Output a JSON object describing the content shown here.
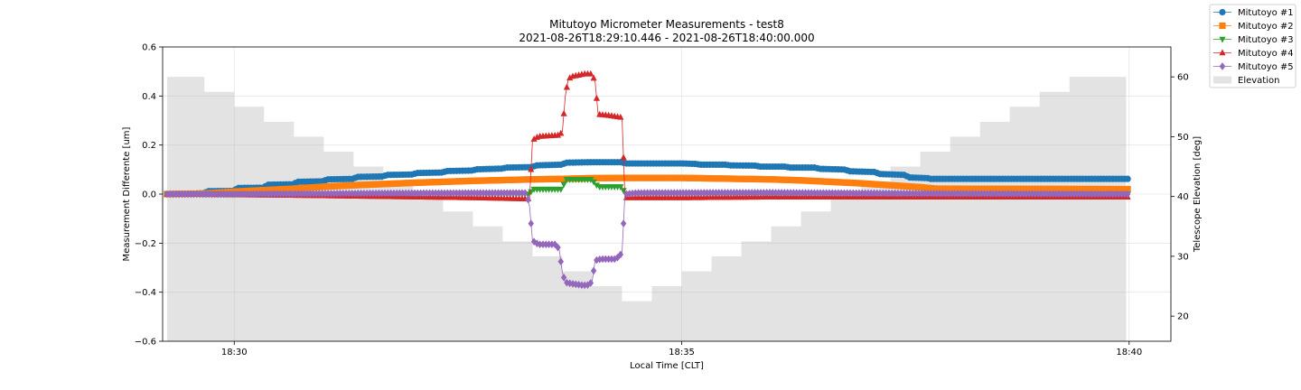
{
  "chart_data": {
    "type": "line",
    "title": "Mitutoyo Micrometer Measurements - test8",
    "subtitle": "2021-08-26T18:29:10.446 - 2021-08-26T18:40:00.000",
    "xlabel": "Local Time [CLT]",
    "ylabel": "Measurement Differente [um]",
    "y2label": "Telescope Elevation [deg]",
    "xlim": [
      "18:29:12",
      "18:40:28"
    ],
    "ylim": [
      -0.6,
      0.6
    ],
    "y2lim": [
      15.8,
      65
    ],
    "xticks": [
      "18:30",
      "18:35",
      "18:40"
    ],
    "yticks": [
      "−0.6",
      "−0.4",
      "−0.2",
      "0.0",
      "0.2",
      "0.4",
      "0.6"
    ],
    "y2ticks": [
      "20",
      "30",
      "40",
      "50",
      "60"
    ],
    "grid": true,
    "legend_position": "top-right",
    "series": [
      {
        "name": "Mitutoyo #1",
        "color": "#1f77b4",
        "marker": "circle",
        "points": [
          [
            "18:29:15",
            0.0
          ],
          [
            "18:29:40",
            0.003
          ],
          [
            "18:29:42",
            0.012
          ],
          [
            "18:30:00",
            0.013
          ],
          [
            "18:30:02",
            0.025
          ],
          [
            "18:30:20",
            0.026
          ],
          [
            "18:30:22",
            0.038
          ],
          [
            "18:30:40",
            0.04
          ],
          [
            "18:30:42",
            0.05
          ],
          [
            "18:31:00",
            0.052
          ],
          [
            "18:31:02",
            0.06
          ],
          [
            "18:31:20",
            0.062
          ],
          [
            "18:31:22",
            0.07
          ],
          [
            "18:31:40",
            0.072
          ],
          [
            "18:31:42",
            0.078
          ],
          [
            "18:32:00",
            0.08
          ],
          [
            "18:32:02",
            0.086
          ],
          [
            "18:32:20",
            0.088
          ],
          [
            "18:32:22",
            0.094
          ],
          [
            "18:32:40",
            0.096
          ],
          [
            "18:32:42",
            0.101
          ],
          [
            "18:33:00",
            0.104
          ],
          [
            "18:33:02",
            0.108
          ],
          [
            "18:33:20",
            0.11
          ],
          [
            "18:33:22",
            0.117
          ],
          [
            "18:33:40",
            0.12
          ],
          [
            "18:33:42",
            0.128
          ],
          [
            "18:34:00",
            0.13
          ],
          [
            "18:34:20",
            0.13
          ],
          [
            "18:34:22",
            0.125
          ],
          [
            "18:35:00",
            0.125
          ],
          [
            "18:35:10",
            0.123
          ],
          [
            "18:35:12",
            0.12
          ],
          [
            "18:35:30",
            0.12
          ],
          [
            "18:35:32",
            0.117
          ],
          [
            "18:35:50",
            0.116
          ],
          [
            "18:35:52",
            0.112
          ],
          [
            "18:36:10",
            0.112
          ],
          [
            "18:36:12",
            0.108
          ],
          [
            "18:36:30",
            0.108
          ],
          [
            "18:36:32",
            0.103
          ],
          [
            "18:36:50",
            0.1
          ],
          [
            "18:36:52",
            0.093
          ],
          [
            "18:37:10",
            0.09
          ],
          [
            "18:37:12",
            0.082
          ],
          [
            "18:37:30",
            0.078
          ],
          [
            "18:37:32",
            0.068
          ],
          [
            "18:37:45",
            0.065
          ],
          [
            "18:37:47",
            0.062
          ],
          [
            "18:40:00",
            0.062
          ]
        ]
      },
      {
        "name": "Mitutoyo #2",
        "color": "#ff7f0e",
        "marker": "square",
        "points": [
          [
            "18:29:15",
            0.0
          ],
          [
            "18:29:40",
            0.002
          ],
          [
            "18:30:00",
            0.01
          ],
          [
            "18:30:20",
            0.016
          ],
          [
            "18:30:40",
            0.022
          ],
          [
            "18:31:00",
            0.03
          ],
          [
            "18:31:20",
            0.036
          ],
          [
            "18:31:40",
            0.041
          ],
          [
            "18:32:00",
            0.046
          ],
          [
            "18:32:20",
            0.05
          ],
          [
            "18:32:40",
            0.054
          ],
          [
            "18:33:00",
            0.057
          ],
          [
            "18:33:20",
            0.06
          ],
          [
            "18:33:40",
            0.062
          ],
          [
            "18:34:00",
            0.065
          ],
          [
            "18:34:20",
            0.066
          ],
          [
            "18:35:00",
            0.066
          ],
          [
            "18:35:20",
            0.064
          ],
          [
            "18:35:40",
            0.062
          ],
          [
            "18:36:00",
            0.06
          ],
          [
            "18:36:20",
            0.056
          ],
          [
            "18:36:40",
            0.05
          ],
          [
            "18:37:00",
            0.044
          ],
          [
            "18:37:20",
            0.036
          ],
          [
            "18:37:40",
            0.028
          ],
          [
            "18:37:50",
            0.022
          ],
          [
            "18:40:00",
            0.02
          ]
        ]
      },
      {
        "name": "Mitutoyo #3",
        "color": "#2ca02c",
        "marker": "triangle-down",
        "points": [
          [
            "18:29:15",
            0.0
          ],
          [
            "18:33:00",
            0.0
          ],
          [
            "18:33:18",
            0.0
          ],
          [
            "18:33:20",
            0.02
          ],
          [
            "18:33:40",
            0.02
          ],
          [
            "18:33:42",
            0.06
          ],
          [
            "18:34:00",
            0.06
          ],
          [
            "18:34:02",
            0.04
          ],
          [
            "18:34:05",
            0.03
          ],
          [
            "18:34:20",
            0.03
          ],
          [
            "18:34:22",
            0.0
          ],
          [
            "18:40:00",
            0.0
          ]
        ]
      },
      {
        "name": "Mitutoyo #4",
        "color": "#d62728",
        "marker": "triangle-up",
        "points": [
          [
            "18:29:15",
            0.0
          ],
          [
            "18:30:40",
            -0.005
          ],
          [
            "18:31:40",
            -0.01
          ],
          [
            "18:32:40",
            -0.015
          ],
          [
            "18:33:18",
            -0.02
          ],
          [
            "18:33:20",
            0.22
          ],
          [
            "18:33:24",
            0.235
          ],
          [
            "18:33:38",
            0.24
          ],
          [
            "18:33:40",
            0.255
          ],
          [
            "18:33:42",
            0.4
          ],
          [
            "18:33:44",
            0.47
          ],
          [
            "18:33:47",
            0.48
          ],
          [
            "18:33:55",
            0.49
          ],
          [
            "18:34:00",
            0.49
          ],
          [
            "18:34:02",
            0.455
          ],
          [
            "18:34:04",
            0.325
          ],
          [
            "18:34:12",
            0.32
          ],
          [
            "18:34:20",
            0.312
          ],
          [
            "18:34:22",
            -0.015
          ],
          [
            "18:35:00",
            -0.015
          ],
          [
            "18:36:00",
            -0.012
          ],
          [
            "18:37:00",
            -0.012
          ],
          [
            "18:38:00",
            -0.012
          ],
          [
            "18:40:00",
            -0.012
          ]
        ]
      },
      {
        "name": "Mitutoyo #5",
        "color": "#9467bd",
        "marker": "diamond",
        "points": [
          [
            "18:29:15",
            0.0
          ],
          [
            "18:30:00",
            0.0
          ],
          [
            "18:31:00",
            0.002
          ],
          [
            "18:32:00",
            0.004
          ],
          [
            "18:33:00",
            0.005
          ],
          [
            "18:33:16",
            0.005
          ],
          [
            "18:33:18",
            -0.05
          ],
          [
            "18:33:20",
            -0.19
          ],
          [
            "18:33:24",
            -0.205
          ],
          [
            "18:33:36",
            -0.205
          ],
          [
            "18:33:38",
            -0.23
          ],
          [
            "18:33:40",
            -0.32
          ],
          [
            "18:33:42",
            -0.36
          ],
          [
            "18:33:46",
            -0.365
          ],
          [
            "18:33:54",
            -0.372
          ],
          [
            "18:33:58",
            -0.37
          ],
          [
            "18:34:00",
            -0.355
          ],
          [
            "18:34:02",
            -0.27
          ],
          [
            "18:34:06",
            -0.265
          ],
          [
            "18:34:16",
            -0.265
          ],
          [
            "18:34:20",
            -0.24
          ],
          [
            "18:34:22",
            0.0
          ],
          [
            "18:34:30",
            0.005
          ],
          [
            "18:36:00",
            0.006
          ],
          [
            "18:37:00",
            0.004
          ],
          [
            "18:38:00",
            0.002
          ],
          [
            "18:40:00",
            0.0
          ]
        ]
      }
    ],
    "elevation": {
      "name": "Elevation",
      "color": "#e3e3e3",
      "steps": [
        [
          "18:29:15",
          60
        ],
        [
          "18:29:40",
          57.5
        ],
        [
          "18:30:00",
          55
        ],
        [
          "18:30:20",
          52.5
        ],
        [
          "18:30:40",
          50
        ],
        [
          "18:31:00",
          47.5
        ],
        [
          "18:31:20",
          45
        ],
        [
          "18:31:40",
          42.5
        ],
        [
          "18:32:00",
          40
        ],
        [
          "18:32:20",
          37.5
        ],
        [
          "18:32:40",
          35
        ],
        [
          "18:33:00",
          32.5
        ],
        [
          "18:33:20",
          30
        ],
        [
          "18:33:40",
          27.5
        ],
        [
          "18:34:00",
          25
        ],
        [
          "18:34:20",
          22.5
        ],
        [
          "18:34:40",
          25
        ],
        [
          "18:35:00",
          27.5
        ],
        [
          "18:35:20",
          30
        ],
        [
          "18:35:40",
          32.5
        ],
        [
          "18:36:00",
          35
        ],
        [
          "18:36:20",
          37.5
        ],
        [
          "18:36:40",
          40
        ],
        [
          "18:37:00",
          42.5
        ],
        [
          "18:37:20",
          45
        ],
        [
          "18:37:40",
          47.5
        ],
        [
          "18:38:00",
          50
        ],
        [
          "18:38:20",
          52.5
        ],
        [
          "18:38:40",
          55
        ],
        [
          "18:39:00",
          57.5
        ],
        [
          "18:39:20",
          60
        ]
      ],
      "end": "18:39:58"
    }
  }
}
